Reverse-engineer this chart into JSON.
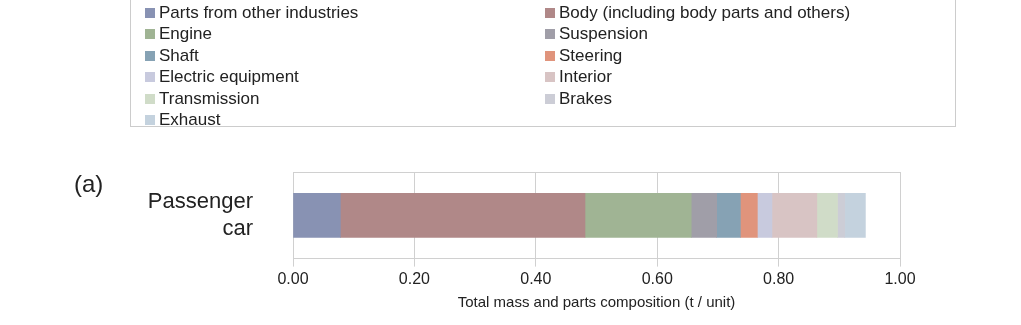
{
  "chart_data": {
    "type": "bar",
    "orientation": "horizontal",
    "stacked": true,
    "categories": [
      "Passenger car"
    ],
    "xlabel": "Total mass and parts composition (t / unit)",
    "xlim": [
      0,
      1
    ],
    "xticks": [
      {
        "value": 0,
        "label": "0.00"
      },
      {
        "value": 0.2,
        "label": "0.20"
      },
      {
        "value": 0.4,
        "label": "0.40"
      },
      {
        "value": 0.6,
        "label": "0.60"
      },
      {
        "value": 0.8,
        "label": "0.80"
      },
      {
        "value": 1,
        "label": "1.00"
      }
    ],
    "grid": "x",
    "legend": "top",
    "annotations": [
      "(a)"
    ],
    "series": [
      {
        "name": "Parts from other industries",
        "color": "#8892b3",
        "values": [
          0.078
        ]
      },
      {
        "name": "Body (including body parts and others)",
        "color": "#b08888",
        "values": [
          0.403
        ]
      },
      {
        "name": "Engine",
        "color": "#a0b494",
        "values": [
          0.175
        ]
      },
      {
        "name": "Suspension",
        "color": "#a09ea8",
        "values": [
          0.042
        ]
      },
      {
        "name": "Shaft",
        "color": "#86a2b4",
        "values": [
          0.039
        ]
      },
      {
        "name": "Steering",
        "color": "#e0947c",
        "values": [
          0.028
        ]
      },
      {
        "name": "Electric equipment",
        "color": "#c8cade",
        "values": [
          0.024
        ]
      },
      {
        "name": "Interior",
        "color": "#d8c4c4",
        "values": [
          0.074
        ]
      },
      {
        "name": "Transmission",
        "color": "#d0dcc8",
        "values": [
          0.034
        ]
      },
      {
        "name": "Brakes",
        "color": "#cccdd6",
        "values": [
          0.012
        ]
      },
      {
        "name": "Exhaust",
        "color": "#c4d2de",
        "values": [
          0.034
        ]
      }
    ]
  }
}
